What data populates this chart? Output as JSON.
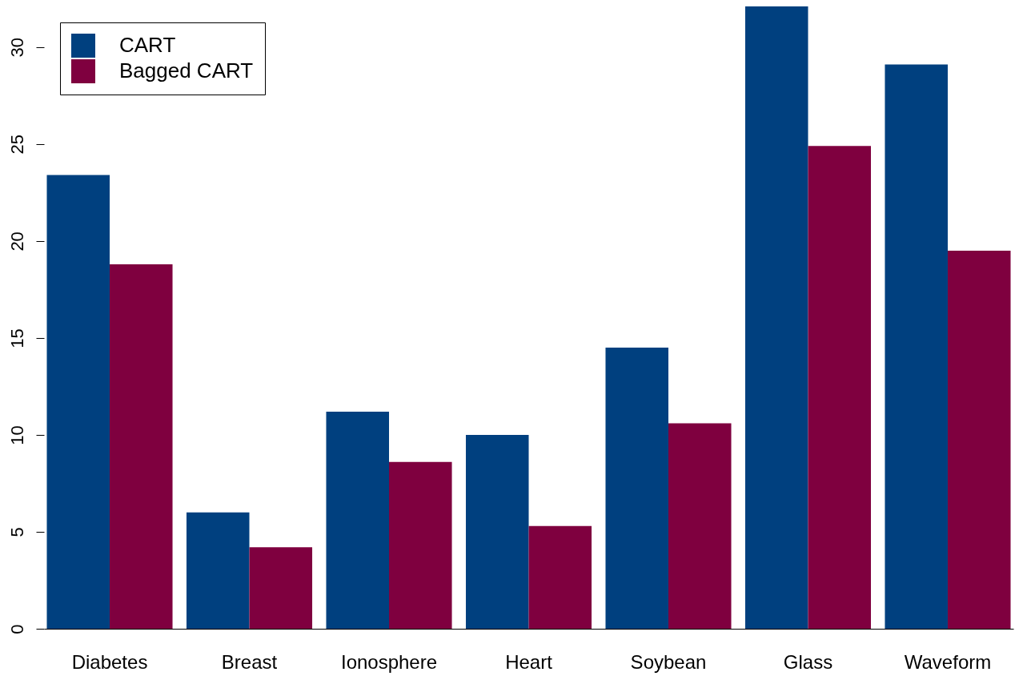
{
  "chart_data": {
    "type": "bar",
    "categories": [
      "Diabetes",
      "Breast",
      "Ionosphere",
      "Heart",
      "Soybean",
      "Glass",
      "Waveform"
    ],
    "series": [
      {
        "name": "CART",
        "color": "#00407f",
        "values": [
          23.4,
          6.0,
          11.2,
          10.0,
          14.5,
          32.1,
          29.1
        ]
      },
      {
        "name": "Bagged CART",
        "color": "#7f003f",
        "values": [
          18.8,
          4.2,
          8.6,
          5.3,
          10.6,
          24.9,
          19.5
        ]
      }
    ],
    "ylim": [
      0,
      32.1
    ],
    "yticks": [
      0,
      5,
      10,
      15,
      20,
      25,
      30
    ],
    "grid": false,
    "legend": "top left"
  }
}
